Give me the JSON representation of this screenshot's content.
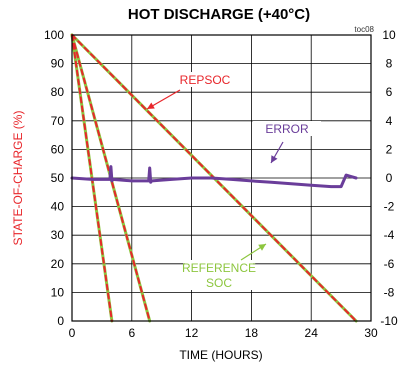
{
  "chart_data": {
    "type": "line",
    "title": "HOT DISCHARGE (+40°C)",
    "figure_id": "toc08",
    "xlabel": "TIME (HOURS)",
    "ylabel": "STATE-OF-CHARGE (%)",
    "xlim": [
      0,
      30
    ],
    "ylim": [
      0,
      100
    ],
    "y2lim": [
      -10,
      10
    ],
    "x_ticks": [
      "0",
      "6",
      "12",
      "18",
      "24",
      "30"
    ],
    "y_ticks": [
      "0",
      "10",
      "20",
      "30",
      "40",
      "50",
      "60",
      "70",
      "80",
      "90",
      "100"
    ],
    "y2_ticks": [
      "10",
      "8",
      "6",
      "4",
      "2",
      "0",
      "-2",
      "-4",
      "-6",
      "-8",
      "-10"
    ],
    "grid": true,
    "colors": {
      "repsoc": "#e8262b",
      "reference": "#8dc63f",
      "error": "#6a3d9a",
      "ylabel": "#e8262b"
    },
    "annotations": [
      {
        "text": "REPSOC",
        "color": "#e8262b"
      },
      {
        "text": "ERROR",
        "color": "#6a3d9a"
      },
      {
        "text": "REFERENCE",
        "color": "#8dc63f"
      },
      {
        "text": "SOC",
        "color": "#8dc63f"
      }
    ],
    "series": [
      {
        "name": "REPSOC",
        "axis": "left",
        "style": "dashed",
        "color": "#e8262b",
        "x": [
          0,
          28.5
        ],
        "y": [
          100,
          0
        ]
      },
      {
        "name": "REPSOC",
        "axis": "left",
        "style": "dashed",
        "color": "#e8262b",
        "x": [
          0,
          7.8
        ],
        "y": [
          100,
          0
        ]
      },
      {
        "name": "REPSOC",
        "axis": "left",
        "style": "dashed",
        "color": "#e8262b",
        "x": [
          0,
          4.0
        ],
        "y": [
          100,
          0
        ]
      },
      {
        "name": "REFERENCE SOC",
        "axis": "left",
        "style": "solid",
        "color": "#8dc63f",
        "x": [
          0,
          28.5
        ],
        "y": [
          100,
          0
        ]
      },
      {
        "name": "REFERENCE SOC",
        "axis": "left",
        "style": "solid",
        "color": "#8dc63f",
        "x": [
          0,
          7.8
        ],
        "y": [
          100,
          0
        ]
      },
      {
        "name": "REFERENCE SOC",
        "axis": "left",
        "style": "solid",
        "color": "#8dc63f",
        "x": [
          0,
          4.0
        ],
        "y": [
          100,
          0
        ]
      },
      {
        "name": "ERROR",
        "axis": "right",
        "style": "solid",
        "color": "#6a3d9a",
        "x": [
          0,
          2,
          3.8,
          3.9,
          4.0,
          4.1,
          6,
          7.7,
          7.8,
          7.9,
          8.0,
          10,
          12,
          14,
          16,
          18,
          20,
          22,
          24,
          26,
          27,
          27.5,
          28,
          28.5
        ],
        "y": [
          0,
          -0.1,
          -0.1,
          0.8,
          -0.2,
          -0.1,
          -0.2,
          -0.2,
          0.7,
          -0.3,
          -0.2,
          -0.1,
          0,
          0,
          -0.1,
          -0.2,
          -0.3,
          -0.4,
          -0.5,
          -0.6,
          -0.6,
          0.2,
          0.1,
          0
        ]
      }
    ]
  }
}
